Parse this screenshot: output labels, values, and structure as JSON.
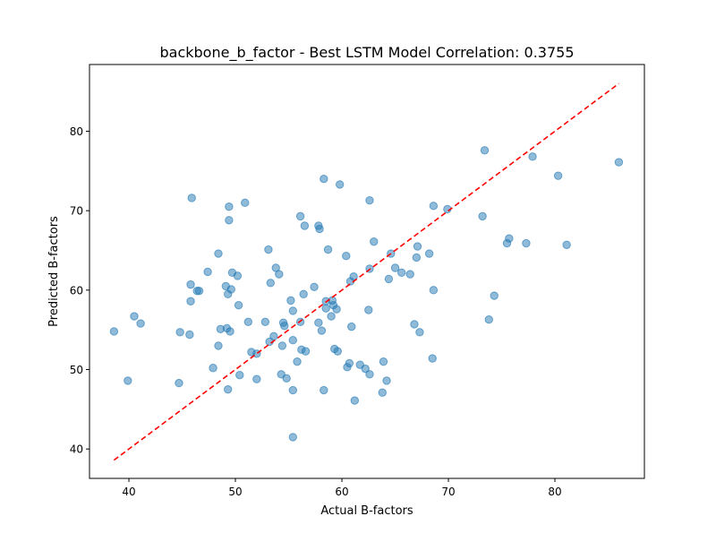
{
  "chart_data": {
    "type": "scatter",
    "title": "backbone_b_factor - Best LSTM Model Correlation: 0.3755",
    "xlabel": "Actual B-factors",
    "ylabel": "Predicted B-factors",
    "xlim": [
      36.3,
      88.4
    ],
    "ylim": [
      36.3,
      88.4
    ],
    "xticks": [
      40,
      50,
      60,
      70,
      80
    ],
    "yticks": [
      40,
      50,
      60,
      70,
      80
    ],
    "grid": false,
    "colors": {
      "points": "#1f77b4",
      "reference": "#ff0000"
    },
    "reference_line": {
      "x": [
        38.6,
        86.0
      ],
      "y": [
        38.6,
        86.0
      ],
      "style": "dashed"
    },
    "series": [
      {
        "points": [
          [
            38.6,
            54.8
          ],
          [
            39.9,
            48.6
          ],
          [
            40.5,
            56.7
          ],
          [
            41.1,
            55.8
          ],
          [
            44.7,
            48.3
          ],
          [
            44.8,
            54.7
          ],
          [
            45.7,
            54.4
          ],
          [
            45.8,
            60.7
          ],
          [
            45.8,
            58.6
          ],
          [
            45.9,
            71.6
          ],
          [
            46.4,
            59.9
          ],
          [
            46.6,
            59.9
          ],
          [
            47.4,
            62.3
          ],
          [
            47.9,
            50.2
          ],
          [
            48.4,
            64.6
          ],
          [
            48.4,
            53.0
          ],
          [
            48.6,
            55.1
          ],
          [
            49.1,
            60.5
          ],
          [
            49.2,
            55.2
          ],
          [
            49.3,
            59.5
          ],
          [
            49.4,
            70.5
          ],
          [
            49.4,
            68.8
          ],
          [
            49.3,
            47.5
          ],
          [
            49.5,
            54.8
          ],
          [
            49.6,
            60.1
          ],
          [
            49.7,
            62.2
          ],
          [
            50.2,
            61.8
          ],
          [
            50.3,
            58.1
          ],
          [
            50.4,
            49.3
          ],
          [
            50.9,
            71.0
          ],
          [
            51.2,
            56.0
          ],
          [
            51.5,
            52.2
          ],
          [
            52.0,
            48.8
          ],
          [
            52.0,
            52.0
          ],
          [
            52.8,
            56.0
          ],
          [
            53.1,
            65.1
          ],
          [
            53.2,
            53.5
          ],
          [
            53.3,
            60.9
          ],
          [
            53.6,
            54.2
          ],
          [
            53.8,
            62.8
          ],
          [
            54.1,
            62.0
          ],
          [
            54.3,
            49.4
          ],
          [
            54.4,
            53.0
          ],
          [
            54.5,
            55.9
          ],
          [
            54.6,
            55.5
          ],
          [
            54.8,
            48.9
          ],
          [
            55.2,
            58.7
          ],
          [
            55.4,
            57.4
          ],
          [
            55.4,
            53.7
          ],
          [
            55.4,
            47.4
          ],
          [
            55.4,
            41.5
          ],
          [
            55.8,
            51.0
          ],
          [
            56.1,
            56.0
          ],
          [
            56.1,
            69.3
          ],
          [
            56.2,
            52.5
          ],
          [
            56.4,
            59.5
          ],
          [
            56.5,
            68.1
          ],
          [
            56.6,
            52.3
          ],
          [
            57.4,
            60.4
          ],
          [
            57.8,
            68.1
          ],
          [
            57.9,
            67.7
          ],
          [
            57.8,
            55.9
          ],
          [
            58.1,
            54.9
          ],
          [
            58.3,
            74.0
          ],
          [
            58.3,
            47.4
          ],
          [
            58.5,
            57.7
          ],
          [
            58.5,
            58.6
          ],
          [
            58.7,
            65.1
          ],
          [
            59.0,
            56.7
          ],
          [
            59.1,
            58.7
          ],
          [
            59.2,
            58.1
          ],
          [
            59.3,
            52.6
          ],
          [
            59.5,
            57.6
          ],
          [
            59.6,
            52.3
          ],
          [
            59.8,
            73.3
          ],
          [
            60.4,
            64.3
          ],
          [
            60.5,
            50.3
          ],
          [
            60.7,
            50.8
          ],
          [
            60.8,
            61.1
          ],
          [
            60.9,
            55.4
          ],
          [
            61.1,
            61.7
          ],
          [
            61.2,
            46.1
          ],
          [
            61.7,
            50.6
          ],
          [
            62.2,
            50.1
          ],
          [
            62.5,
            57.5
          ],
          [
            62.6,
            71.3
          ],
          [
            62.6,
            62.7
          ],
          [
            62.6,
            49.4
          ],
          [
            63.0,
            66.1
          ],
          [
            63.8,
            47.1
          ],
          [
            63.9,
            51.0
          ],
          [
            64.2,
            48.6
          ],
          [
            64.4,
            61.4
          ],
          [
            64.6,
            64.6
          ],
          [
            65.0,
            62.8
          ],
          [
            65.6,
            62.2
          ],
          [
            66.4,
            62.0
          ],
          [
            66.8,
            55.7
          ],
          [
            67.0,
            64.1
          ],
          [
            67.1,
            65.5
          ],
          [
            67.3,
            54.7
          ],
          [
            68.2,
            64.6
          ],
          [
            68.5,
            51.4
          ],
          [
            68.6,
            70.6
          ],
          [
            68.6,
            60.0
          ],
          [
            69.9,
            70.2
          ],
          [
            73.2,
            69.3
          ],
          [
            73.4,
            77.6
          ],
          [
            73.8,
            56.3
          ],
          [
            74.3,
            59.3
          ],
          [
            75.5,
            65.9
          ],
          [
            75.7,
            66.5
          ],
          [
            77.3,
            65.9
          ],
          [
            77.9,
            76.8
          ],
          [
            80.3,
            74.4
          ],
          [
            81.1,
            65.7
          ],
          [
            86.0,
            76.1
          ]
        ]
      }
    ]
  }
}
